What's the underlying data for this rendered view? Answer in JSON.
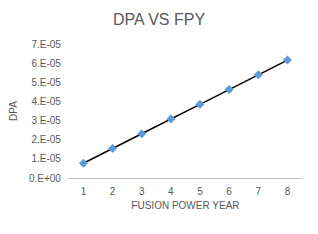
{
  "chart_data": {
    "type": "line",
    "title": "DPA VS FPY",
    "x_label": "FUSION POWER YEAR",
    "y_label": "DPA",
    "categories": [
      "1",
      "2",
      "3",
      "4",
      "5",
      "6",
      "7",
      "8"
    ],
    "values": [
      7.7e-06,
      1.54e-05,
      2.31e-05,
      3.08e-05,
      3.85e-05,
      4.62e-05,
      5.39e-05,
      6.16e-05
    ],
    "color": "#5b9bd5",
    "marker": "diamond",
    "ylim": [
      0,
      7e-05
    ],
    "yticks": [
      {
        "value": 0,
        "label": "0.E+00"
      },
      {
        "value": 1e-05,
        "label": "1.E-05"
      },
      {
        "value": 2e-05,
        "label": "2.E-05"
      },
      {
        "value": 3e-05,
        "label": "3.E-05"
      },
      {
        "value": 4e-05,
        "label": "4.E-05"
      },
      {
        "value": 5e-05,
        "label": "5.E-05"
      },
      {
        "value": 6e-05,
        "label": "6.E-05"
      },
      {
        "value": 7e-05,
        "label": "7.E-05"
      }
    ],
    "grid": false
  }
}
